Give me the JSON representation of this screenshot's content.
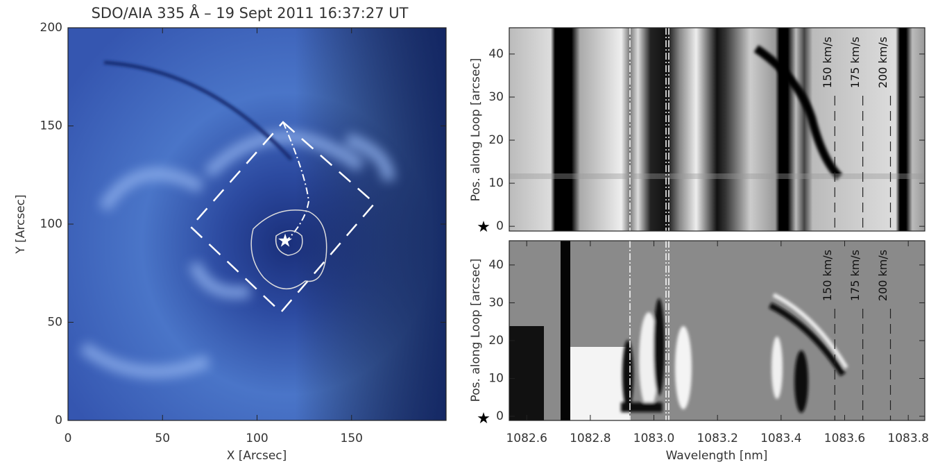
{
  "chart_data": [
    {
      "type": "image",
      "title": "SDO/AIA 335 Å – 19 Sept 2011 16:37:27 UT",
      "xlabel": "X [Arcsec]",
      "ylabel": "Y [Arcsec]",
      "xlim": [
        0,
        200
      ],
      "ylim": [
        0,
        200
      ],
      "xticks": [
        0,
        50,
        100,
        150
      ],
      "yticks": [
        0,
        50,
        100,
        150,
        200
      ]
    },
    {
      "type": "image",
      "ylabel": "Pos. along Loop [arcsec]",
      "xlim": [
        1082.545,
        1083.852
      ],
      "ylim": [
        -1.1,
        46.1
      ],
      "yticks": [
        0,
        10,
        20,
        30,
        40
      ],
      "annotations": [
        {
          "text": "150 km/s",
          "x": 1083.569
        },
        {
          "text": "175 km/s",
          "x": 1083.657
        },
        {
          "text": "200 km/s",
          "x": 1083.744
        }
      ]
    },
    {
      "type": "image",
      "xlabel": "Wavelength [nm]",
      "ylabel": "Pos. along Loop [arcsec]",
      "xlim": [
        1082.545,
        1083.852
      ],
      "ylim": [
        -1.1,
        46.4
      ],
      "xticks": [
        1082.6,
        1082.8,
        {
          "value": 1083.0,
          "label": "1083.0"
        },
        1083.2,
        1083.4,
        1083.6,
        1083.8
      ],
      "yticks": [
        0,
        10,
        20,
        30,
        40
      ],
      "annotations": [
        {
          "text": "150 km/s",
          "x": 1083.569
        },
        {
          "text": "175 km/s",
          "x": 1083.657
        },
        {
          "text": "200 km/s",
          "x": 1083.744
        }
      ]
    }
  ]
}
